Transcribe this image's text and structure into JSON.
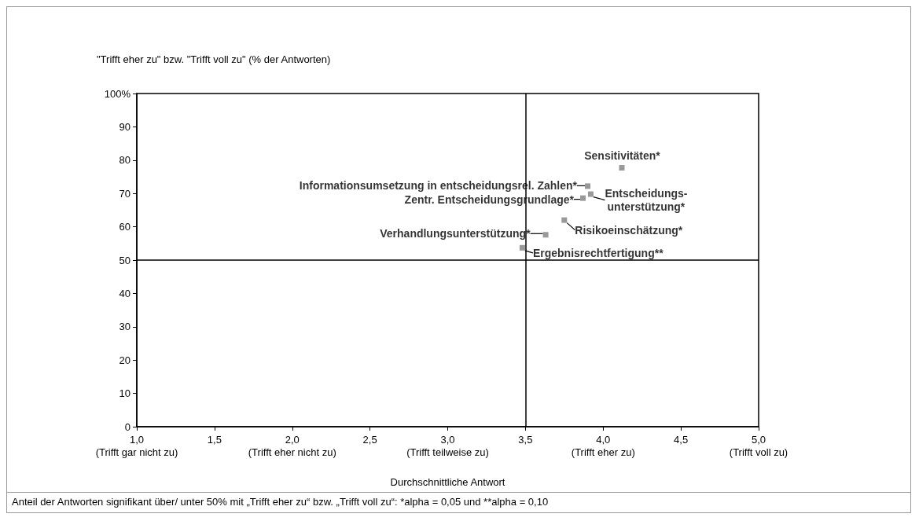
{
  "chart_data": {
    "type": "scatter",
    "ylabel": "\"Trifft eher zu\" bzw. \"Trifft voll zu\" (% der Antworten)",
    "xlabel": "Durchschnittliche Antwort",
    "annotations": [
      "Anteil der Antworten signifikant über/ unter 50% mit „Trifft eher zu“ bzw. „Trifft voll zu“: *alpha = 0,05 und **alpha = 0,10"
    ],
    "series": [
      {
        "name": "Sensitivitäten*",
        "color": "#808080",
        "x": [
          4.12
        ],
        "values": [
          77.7
        ]
      },
      {
        "name": "Informationsumsetzung in entscheidungsrel. Zahlen*",
        "color": "#808080",
        "x": [
          3.9
        ],
        "values": [
          72.2
        ]
      },
      {
        "name": "Entscheidungs-\nunterstützung*",
        "color": "#808080",
        "x": [
          3.92
        ],
        "values": [
          69.8
        ]
      },
      {
        "name": "Zentr. Entscheidungsgrundlage*",
        "color": "#808080",
        "x": [
          3.87
        ],
        "values": [
          68.6
        ]
      },
      {
        "name": "Risikoeinschätzung*",
        "color": "#808080",
        "x": [
          3.75
        ],
        "values": [
          62.0
        ]
      },
      {
        "name": "Verhandlungsunterstützung*",
        "color": "#808080",
        "x": [
          3.63
        ],
        "values": [
          57.6
        ]
      },
      {
        "name": "Ergebnisrechtfertigung**",
        "color": "#808080",
        "x": [
          3.48
        ],
        "values": [
          53.7
        ]
      }
    ],
    "xlim": [
      1,
      5
    ],
    "xticks": [
      {
        "value": 1,
        "label": "1,0\n(Trifft gar nicht zu)"
      },
      {
        "value": 1.5,
        "label": "1,5"
      },
      {
        "value": 2,
        "label": "2,0\n(Trifft eher nicht zu)"
      },
      {
        "value": 2.5,
        "label": "2,5"
      },
      {
        "value": 3,
        "label": "3,0\n(Trifft teilweise zu)"
      },
      {
        "value": 3.5,
        "label": "3,5"
      },
      {
        "value": 4,
        "label": "4,0\n(Trifft eher zu)"
      },
      {
        "value": 4.5,
        "label": "4,5"
      },
      {
        "value": 5,
        "label": "5,0\n(Trifft voll zu)"
      }
    ],
    "ylim": [
      0,
      100
    ],
    "yticks": [
      0,
      10,
      20,
      30,
      40,
      50,
      60,
      70,
      80,
      90,
      {
        "value": 100,
        "label": "100%"
      }
    ],
    "ref_lines": [
      {
        "axis": "x",
        "value": 3.5,
        "color": "#000000"
      },
      {
        "axis": "y",
        "value": 50,
        "color": "#000000"
      }
    ],
    "grid": false,
    "legend": false,
    "marker": "square"
  }
}
